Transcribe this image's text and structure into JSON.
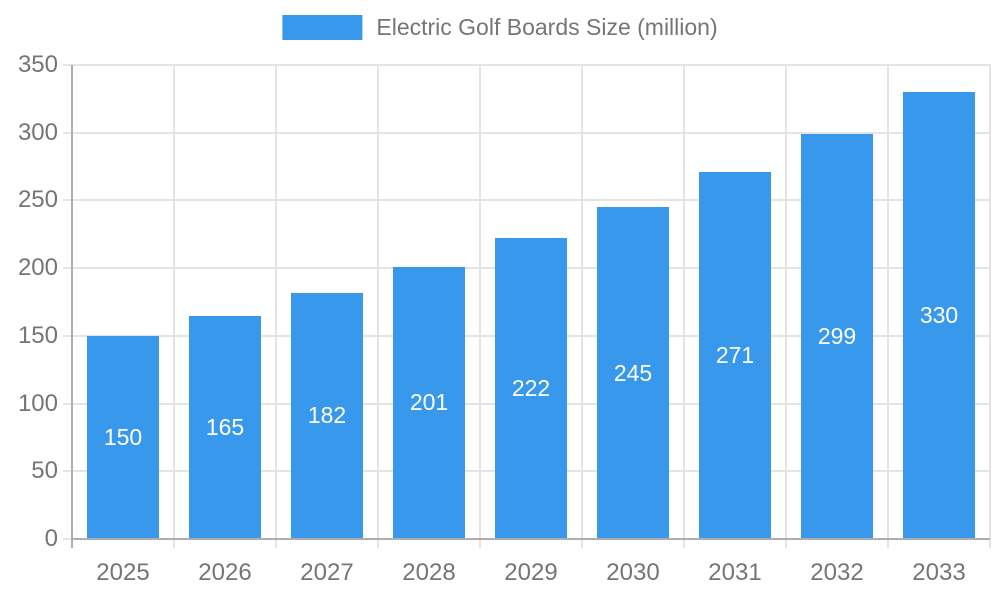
{
  "chart_data": {
    "type": "bar",
    "title": "",
    "legend": "Electric Golf Boards Size (million)",
    "legend_position": "top-center",
    "categories": [
      "2025",
      "2026",
      "2027",
      "2028",
      "2029",
      "2030",
      "2031",
      "2032",
      "2033"
    ],
    "values": [
      150,
      165,
      182,
      201,
      222,
      245,
      271,
      299,
      330
    ],
    "xlabel": "",
    "ylabel": "",
    "ylim": [
      0,
      350
    ],
    "ytick_step": 50,
    "yticks": [
      0,
      50,
      100,
      150,
      200,
      250,
      300,
      350
    ],
    "grid": true,
    "value_labels_shown": true,
    "colors": {
      "bar": "#3898EC",
      "axis_text": "#757575",
      "axis_line": "#ADADAD",
      "gridline": "#E4E4E4",
      "value_label": "#FFFFFF",
      "background": "#FFFFFF"
    }
  }
}
